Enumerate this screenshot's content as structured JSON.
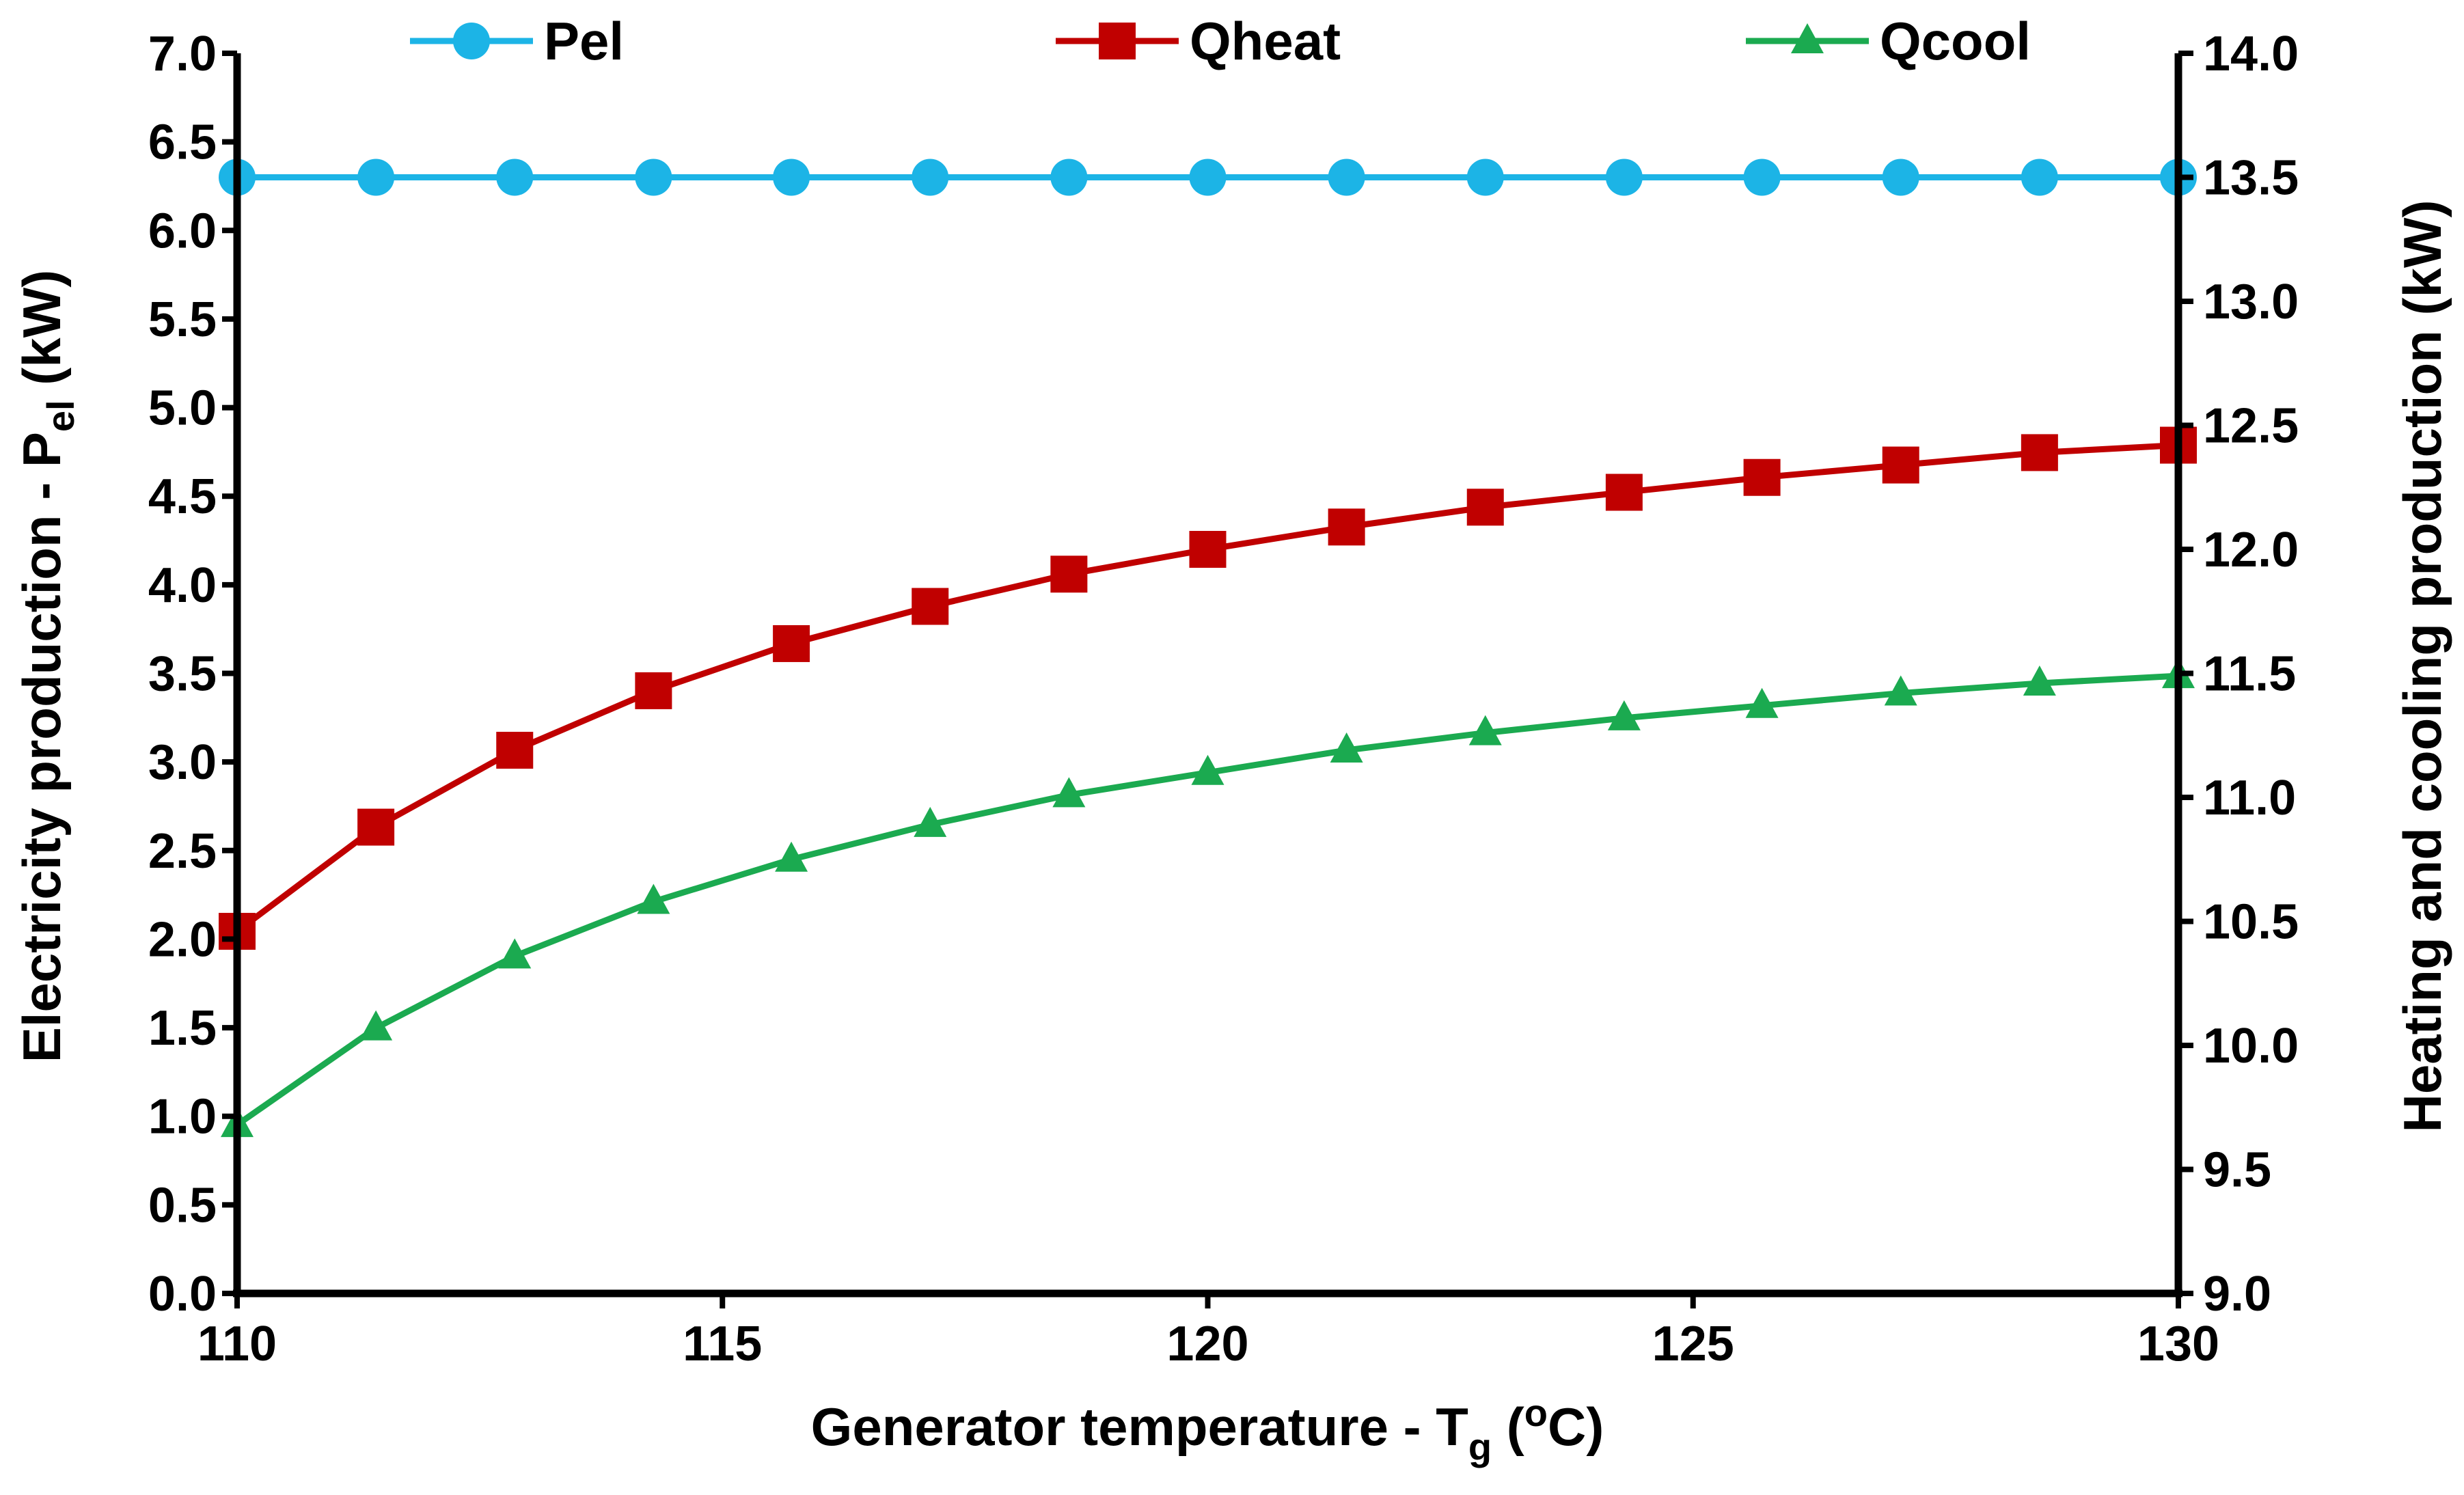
{
  "chart_data": {
    "type": "line",
    "title": "",
    "x": [
      110,
      111.43,
      112.86,
      114.29,
      115.71,
      117.14,
      118.57,
      120.0,
      121.43,
      122.86,
      124.29,
      125.71,
      127.14,
      128.57,
      130.0
    ],
    "xlabel": {
      "main": "Generator temperature - T",
      "sub": "g",
      "open": " (",
      "sup": "o",
      "close": "C)"
    },
    "xlim": [
      110,
      130
    ],
    "xticks": [
      "110",
      "115",
      "120",
      "125",
      "130"
    ],
    "xtick_values": [
      110,
      115,
      120,
      125,
      130
    ],
    "ylabel_left": {
      "main": "Electricity production - P",
      "sub": "el",
      "tail": " (kW)"
    },
    "ylim_left": [
      0,
      7
    ],
    "yticks_left": [
      "0.0",
      "0.5",
      "1.0",
      "1.5",
      "2.0",
      "2.5",
      "3.0",
      "3.5",
      "4.0",
      "4.5",
      "5.0",
      "5.5",
      "6.0",
      "6.5",
      "7.0"
    ],
    "ylabel_right": "Heating and cooling production (kW)",
    "ylim_right": [
      9,
      14
    ],
    "yticks_right": [
      "9.0",
      "9.5",
      "10.0",
      "10.5",
      "11.0",
      "11.5",
      "12.0",
      "12.5",
      "13.0",
      "13.5",
      "14.0"
    ],
    "legend_position": "top",
    "series": [
      {
        "name": "Pel",
        "axis": "left",
        "marker": "circle",
        "color": "#1CB4E6",
        "values": [
          6.3,
          6.3,
          6.3,
          6.3,
          6.3,
          6.3,
          6.3,
          6.3,
          6.3,
          6.3,
          6.3,
          6.3,
          6.3,
          6.3,
          6.3
        ]
      },
      {
        "name": "Qheat",
        "axis": "right",
        "marker": "square",
        "color": "#C00000",
        "values": [
          10.46,
          10.88,
          11.19,
          11.43,
          11.62,
          11.77,
          11.9,
          12.0,
          12.09,
          12.17,
          12.23,
          12.29,
          12.34,
          12.39,
          12.42
        ]
      },
      {
        "name": "Qcool",
        "axis": "right",
        "marker": "triangle",
        "color": "#1BAA50",
        "values": [
          9.68,
          10.07,
          10.36,
          10.58,
          10.75,
          10.89,
          11.01,
          11.1,
          11.19,
          11.26,
          11.32,
          11.37,
          11.42,
          11.46,
          11.49
        ]
      }
    ]
  }
}
